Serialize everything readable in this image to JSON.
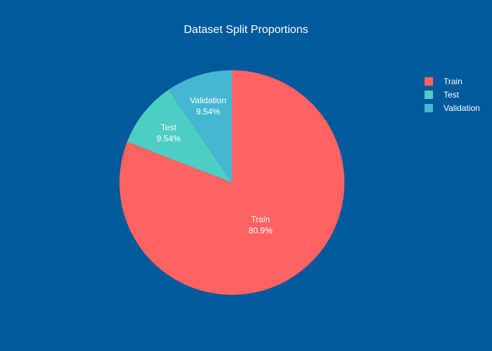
{
  "chart_data": {
    "type": "pie",
    "title": "Dataset Split Proportions",
    "legend_position": "top-right",
    "slices": [
      {
        "label": "Train",
        "value": 80.9,
        "percent_label": "80.9%",
        "color": "#FF6361"
      },
      {
        "label": "Test",
        "value": 9.54,
        "percent_label": "9.54%",
        "color": "#4ECDC4"
      },
      {
        "label": "Validation",
        "value": 9.54,
        "percent_label": "9.54%",
        "color": "#45B7D1"
      }
    ]
  },
  "colors": {
    "background": "#005A9C",
    "text": "#FFFFFF"
  }
}
